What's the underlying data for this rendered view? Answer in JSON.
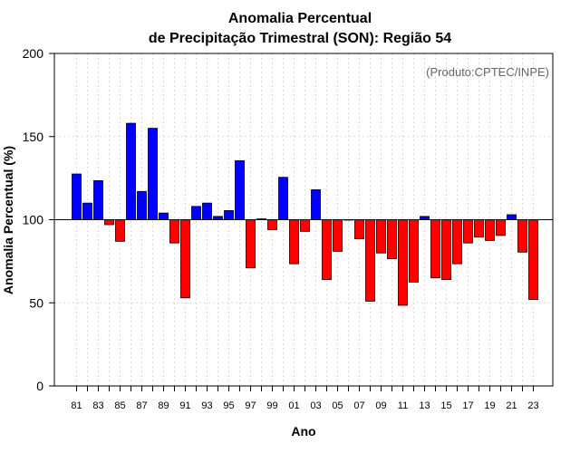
{
  "chart_data": {
    "type": "bar",
    "title": "Anomalia Percentual",
    "subtitle": "de Precipitação Trimestral (SON): Região 54",
    "xlabel": "Ano",
    "ylabel": "Anomalia Percentual (%)",
    "annotation": "(Produto:CPTEC/INPE)",
    "ylim": [
      0,
      200
    ],
    "yticks": [
      "0",
      "50",
      "100",
      "150",
      "200"
    ],
    "baseline": 100,
    "colors": {
      "above": "#0000ff",
      "below": "#ff0000",
      "baseline": "#000000"
    },
    "categories": [
      "81",
      "82",
      "83",
      "84",
      "85",
      "86",
      "87",
      "88",
      "89",
      "90",
      "91",
      "92",
      "93",
      "94",
      "95",
      "96",
      "97",
      "98",
      "99",
      "00",
      "01",
      "02",
      "03",
      "04",
      "05",
      "06",
      "07",
      "08",
      "09",
      "10",
      "11",
      "12",
      "13",
      "14",
      "15",
      "16",
      "17",
      "18",
      "19",
      "20",
      "21",
      "22",
      "23"
    ],
    "xtick_labels": [
      "81",
      "83",
      "85",
      "87",
      "89",
      "91",
      "93",
      "95",
      "97",
      "99",
      "01",
      "03",
      "05",
      "07",
      "09",
      "11",
      "13",
      "15",
      "17",
      "19",
      "21",
      "23"
    ],
    "values": [
      127.5,
      110,
      123.5,
      97,
      87,
      158,
      117,
      155,
      104,
      86,
      53,
      108,
      110,
      102,
      105.5,
      135.5,
      71,
      100.5,
      94,
      125.5,
      73.5,
      93,
      118,
      64,
      81,
      100,
      88.5,
      51,
      80,
      76.5,
      48.5,
      62.5,
      102,
      65,
      64,
      73.5,
      86,
      89.5,
      87.5,
      90.5,
      103,
      80.5,
      52
    ]
  }
}
